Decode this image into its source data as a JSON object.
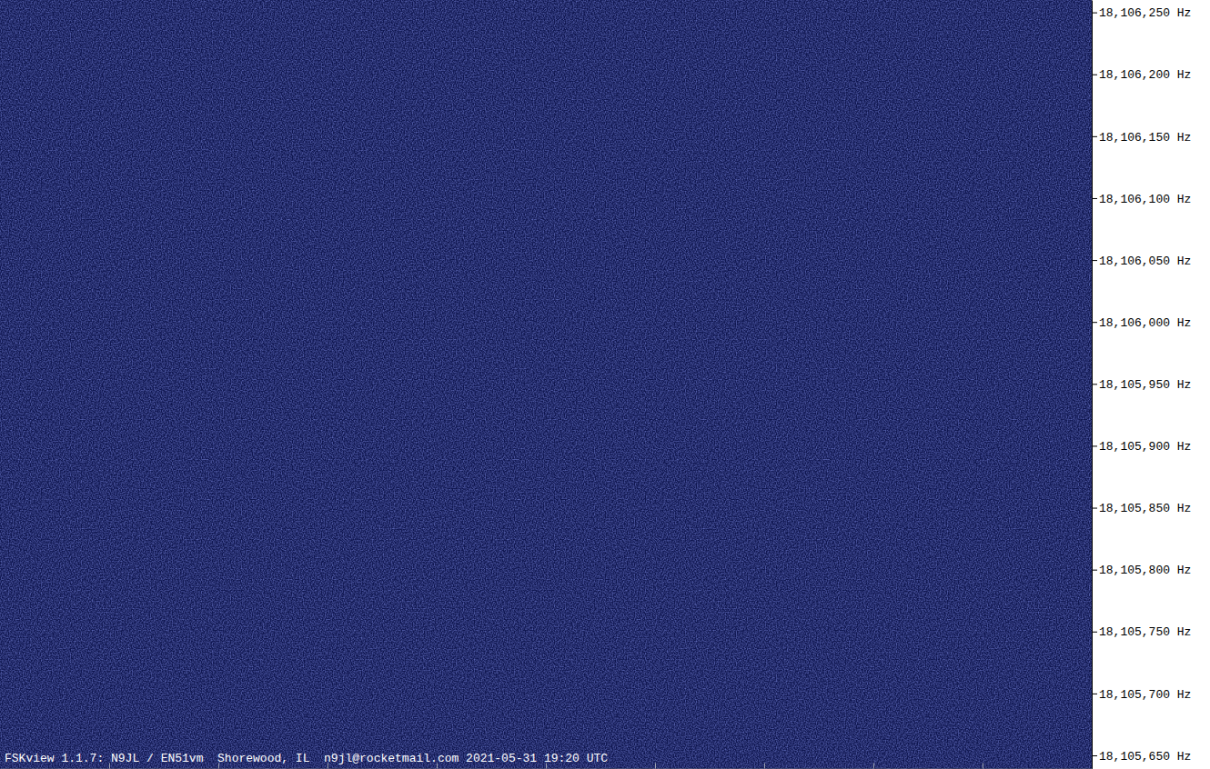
{
  "chart_data": {
    "type": "spectrogram",
    "title": "FSKview 1.1.7: N9JL / EN51vm  Shorewood, IL  n9jl@rocketmail.com 2021-05-31 19:20 UTC",
    "xlim": [
      0,
      10
    ],
    "xticks": [
      1,
      2,
      3,
      4,
      5,
      6,
      7,
      8,
      9
    ],
    "ylim": [
      18105639,
      18106260
    ],
    "yticks": [
      {
        "value": 18106250,
        "label": "18,106,250 Hz"
      },
      {
        "value": 18106200,
        "label": "18,106,200 Hz"
      },
      {
        "value": 18106150,
        "label": "18,106,150 Hz"
      },
      {
        "value": 18106100,
        "label": "18,106,100 Hz"
      },
      {
        "value": 18106050,
        "label": "18,106,050 Hz"
      },
      {
        "value": 18106000,
        "label": "18,106,000 Hz"
      },
      {
        "value": 18105950,
        "label": "18,105,950 Hz"
      },
      {
        "value": 18105900,
        "label": "18,105,900 Hz"
      },
      {
        "value": 18105850,
        "label": "18,105,850 Hz"
      },
      {
        "value": 18105800,
        "label": "18,105,800 Hz"
      },
      {
        "value": 18105750,
        "label": "18,105,750 Hz"
      },
      {
        "value": 18105700,
        "label": "18,105,700 Hz"
      },
      {
        "value": 18105650,
        "label": "18,105,650 Hz"
      }
    ],
    "tick_labels": "y"
  }
}
